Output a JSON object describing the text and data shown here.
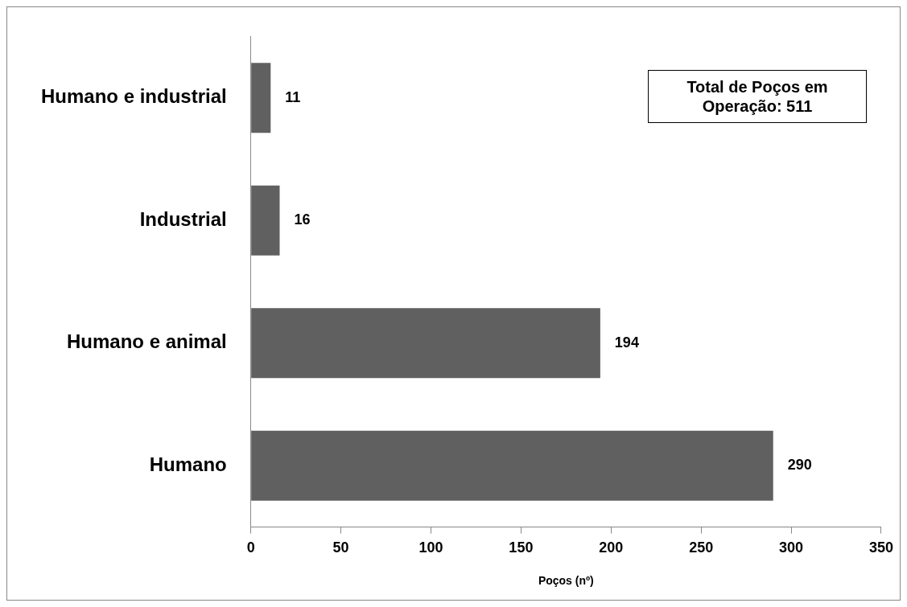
{
  "chart_data": {
    "type": "bar",
    "orientation": "horizontal",
    "xlabel": "Poços (nº)",
    "categories": [
      "Humano e industrial",
      "Industrial",
      "Humano e animal",
      "Humano"
    ],
    "values": [
      11,
      16,
      194,
      290
    ],
    "color": "#606060",
    "xlim": [
      0,
      350
    ],
    "xticks": [
      0,
      50,
      100,
      150,
      200,
      250,
      300,
      350
    ],
    "grid": false,
    "legend": false,
    "data_labels": true,
    "annotations": [
      "Total de Poços em Operação: 511"
    ]
  }
}
